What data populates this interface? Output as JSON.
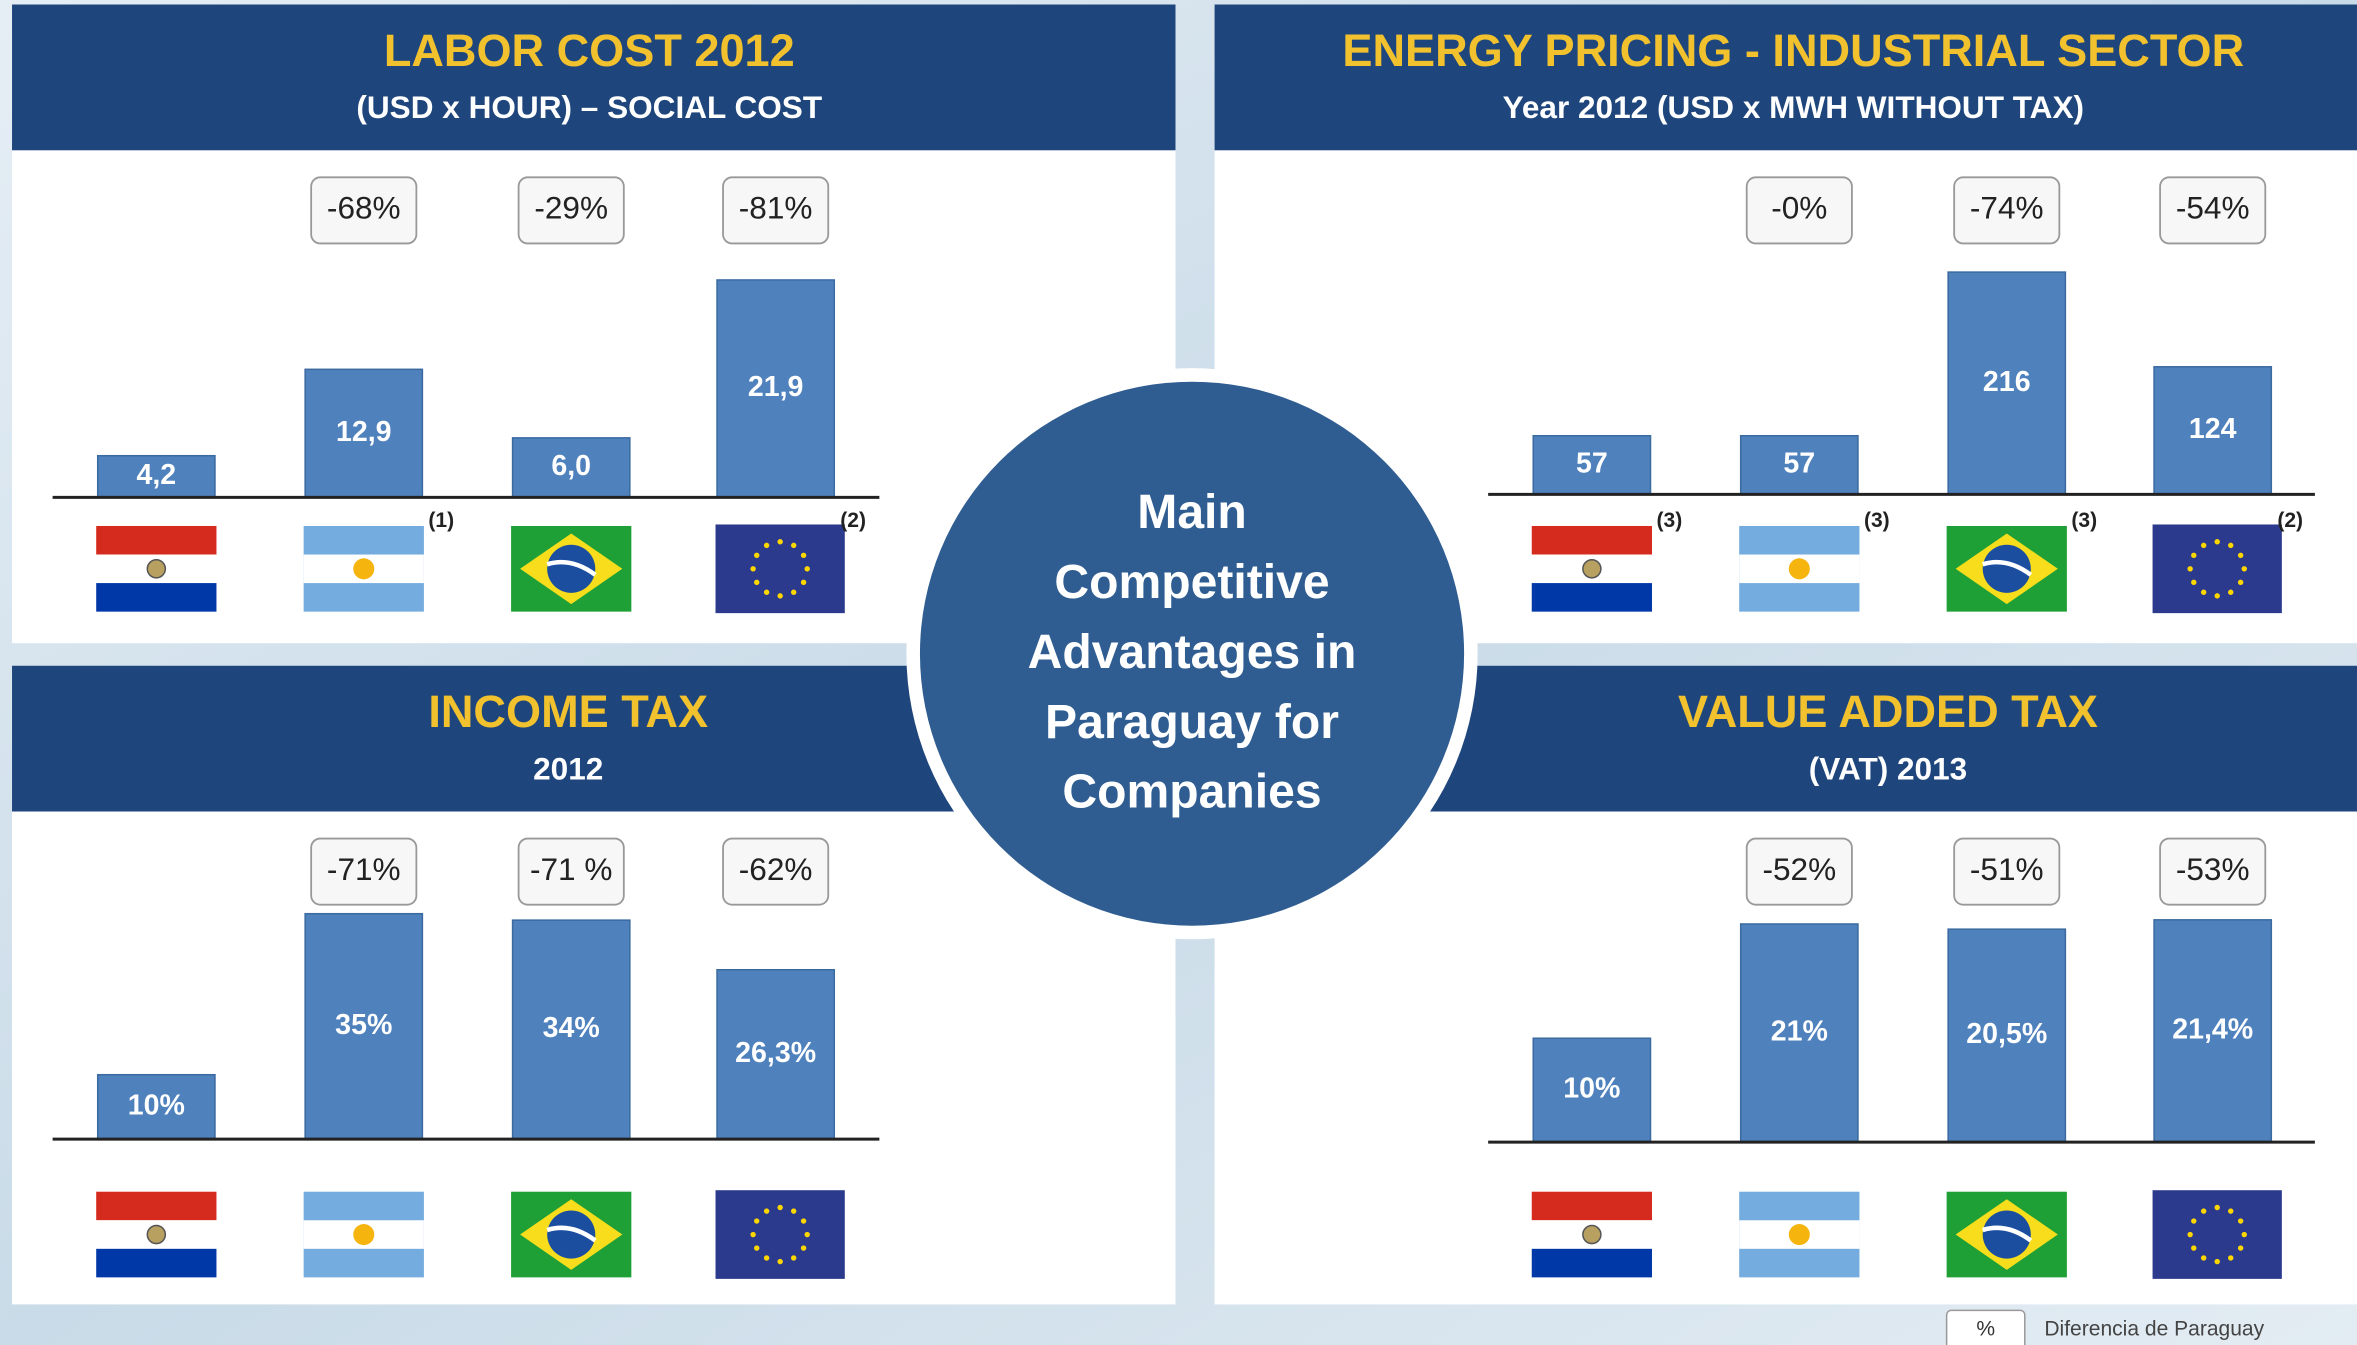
{
  "center_title": [
    "Main",
    "Competitive",
    "Advantages in",
    "Paraguay for",
    "Companies"
  ],
  "legend": {
    "symbol": "%",
    "label": "Diferencia de Paraguay"
  },
  "chart_data": [
    {
      "type": "bar",
      "title": "LABOR COST 2012",
      "subtitle": "(USD x HOUR) – SOCIAL COST",
      "categories": [
        null,
        null,
        null,
        null
      ],
      "values": [
        4.2,
        12.9,
        6.0,
        21.9
      ],
      "value_labels": [
        "4,2",
        "12,9",
        "6,0",
        "21,9"
      ],
      "difference_labels": [
        null,
        "-68%",
        "-29%",
        "-81%"
      ],
      "footnotes": [
        null,
        "(1)",
        null,
        "(2)"
      ],
      "color": "#4f81bd",
      "ylim": [
        0,
        22.7
      ]
    },
    {
      "type": "bar",
      "title": "ENERGY PRICING -  INDUSTRIAL SECTOR",
      "subtitle": "Year 2012  (USD x MWH WITHOUT TAX)",
      "categories": [
        null,
        null,
        null,
        null
      ],
      "values": [
        57,
        57,
        216,
        124
      ],
      "value_labels": [
        "57",
        "57",
        "216",
        "124"
      ],
      "difference_labels": [
        null,
        "-0%",
        "-74%",
        "-54%"
      ],
      "footnotes": [
        "(3)",
        "(3)",
        "(3)",
        "(2)"
      ],
      "color": "#4f81bd",
      "ylim": [
        0,
        219
      ]
    },
    {
      "type": "bar",
      "title": "INCOME TAX",
      "subtitle": "2012",
      "categories": [
        null,
        null,
        null,
        null
      ],
      "values": [
        10,
        35,
        34,
        26.3
      ],
      "value_labels": [
        "10%",
        "35%",
        "34%",
        "26,3%"
      ],
      "difference_labels": [
        null,
        "-71%",
        "-71 %",
        "-62%"
      ],
      "color": "#4f81bd",
      "ylim": [
        0,
        35
      ]
    },
    {
      "type": "bar",
      "title": "VALUE ADDED TAX",
      "subtitle": "(VAT) 2013",
      "categories": [
        null,
        null,
        null,
        null
      ],
      "values": [
        10,
        21,
        20.5,
        21.4
      ],
      "value_labels": [
        "10%",
        "21%",
        "20,5%",
        "21,4%"
      ],
      "difference_labels": [
        null,
        "-52%",
        "-51%",
        "-53%"
      ],
      "color": "#4f81bd",
      "ylim": [
        0,
        21.7
      ]
    }
  ]
}
